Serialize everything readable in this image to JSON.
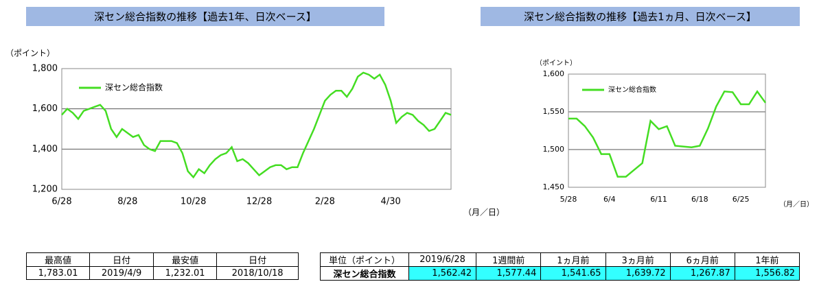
{
  "chart_data": [
    {
      "type": "line",
      "title": "深セン総合指数の推移【過去1年、日次ベース】",
      "y_label": "（ポイント）",
      "x_label": "（月／日）",
      "legend": "upper left",
      "grid": true,
      "categories": [
        "6/28",
        null,
        null,
        null,
        null,
        null,
        null,
        null,
        null,
        null,
        null,
        null,
        "8/28",
        null,
        null,
        null,
        null,
        null,
        null,
        null,
        null,
        null,
        null,
        null,
        "10/28",
        null,
        null,
        null,
        null,
        null,
        null,
        null,
        null,
        null,
        null,
        null,
        "12/28",
        null,
        null,
        null,
        null,
        null,
        null,
        null,
        null,
        null,
        null,
        null,
        "2/28",
        null,
        null,
        null,
        null,
        null,
        null,
        null,
        null,
        null,
        null,
        null,
        "4/30",
        null,
        null,
        null,
        null,
        null,
        null,
        null,
        null,
        null,
        null,
        null
      ],
      "series": [
        {
          "name": "深セン総合指数",
          "color": "#44dd22",
          "values": [
            1570,
            1600,
            1580,
            1550,
            1590,
            1600,
            1610,
            1620,
            1590,
            1500,
            1460,
            1500,
            1480,
            1460,
            1470,
            1420,
            1400,
            1390,
            1440,
            1440,
            1440,
            1430,
            1380,
            1290,
            1260,
            1300,
            1280,
            1320,
            1350,
            1370,
            1380,
            1410,
            1340,
            1350,
            1330,
            1300,
            1270,
            1290,
            1310,
            1320,
            1320,
            1300,
            1310,
            1310,
            1380,
            1440,
            1500,
            1570,
            1640,
            1670,
            1690,
            1690,
            1660,
            1700,
            1760,
            1780,
            1770,
            1750,
            1770,
            1720,
            1640,
            1530,
            1560,
            1580,
            1570,
            1540,
            1520,
            1490,
            1500,
            1540,
            1580,
            1570
          ]
        }
      ],
      "ylim": [
        1200,
        1800
      ],
      "yticks": [
        {
          "value": 1200,
          "label": "1,200"
        },
        {
          "value": 1400,
          "label": "1,400"
        },
        {
          "value": 1600,
          "label": "1,600"
        },
        {
          "value": 1800,
          "label": "1,800"
        }
      ]
    },
    {
      "type": "line",
      "title": "深セン総合指数の推移【過去1ヵ月、日次ベース】",
      "y_label": "（ポイント）",
      "x_label": "（月／日）",
      "legend": "upper left",
      "grid": true,
      "categories": [
        "5/28",
        null,
        null,
        null,
        null,
        "6/4",
        null,
        null,
        null,
        null,
        null,
        "6/11",
        null,
        null,
        null,
        null,
        "6/18",
        null,
        null,
        null,
        null,
        "6/25",
        null,
        null,
        null
      ],
      "series": [
        {
          "name": "深セン総合指数",
          "color": "#44dd22",
          "values": [
            1541,
            1541,
            1531,
            1516,
            1494,
            1494,
            1464,
            1464,
            1473,
            1482,
            1538,
            1527,
            1531,
            1505,
            1504,
            1503,
            1505,
            1528,
            1557,
            1577,
            1576,
            1560,
            1560,
            1577,
            1562
          ]
        }
      ],
      "ylim": [
        1450,
        1600
      ],
      "yticks": [
        {
          "value": 1450,
          "label": "1,450"
        },
        {
          "value": 1500,
          "label": "1,500"
        },
        {
          "value": 1550,
          "label": "1,550"
        },
        {
          "value": 1600,
          "label": "1,600"
        }
      ]
    }
  ],
  "tables": [
    {
      "header": [
        "最高値",
        "日付",
        "最安値",
        "日付"
      ],
      "rows": [
        [
          "1,783.01",
          "2019/4/9",
          "1,232.01",
          "2018/10/18"
        ]
      ]
    },
    {
      "header": [
        "単位（ポイント）",
        "2019/6/28",
        "1週間前",
        "1ヵ月前",
        "3ヵ月前",
        "6ヵ月前",
        "1年前"
      ],
      "rows": [
        [
          "深セン総合指数",
          "1,562.42",
          "1,577.44",
          "1,541.65",
          "1,639.72",
          "1,267.87",
          "1,556.82"
        ]
      ]
    }
  ]
}
